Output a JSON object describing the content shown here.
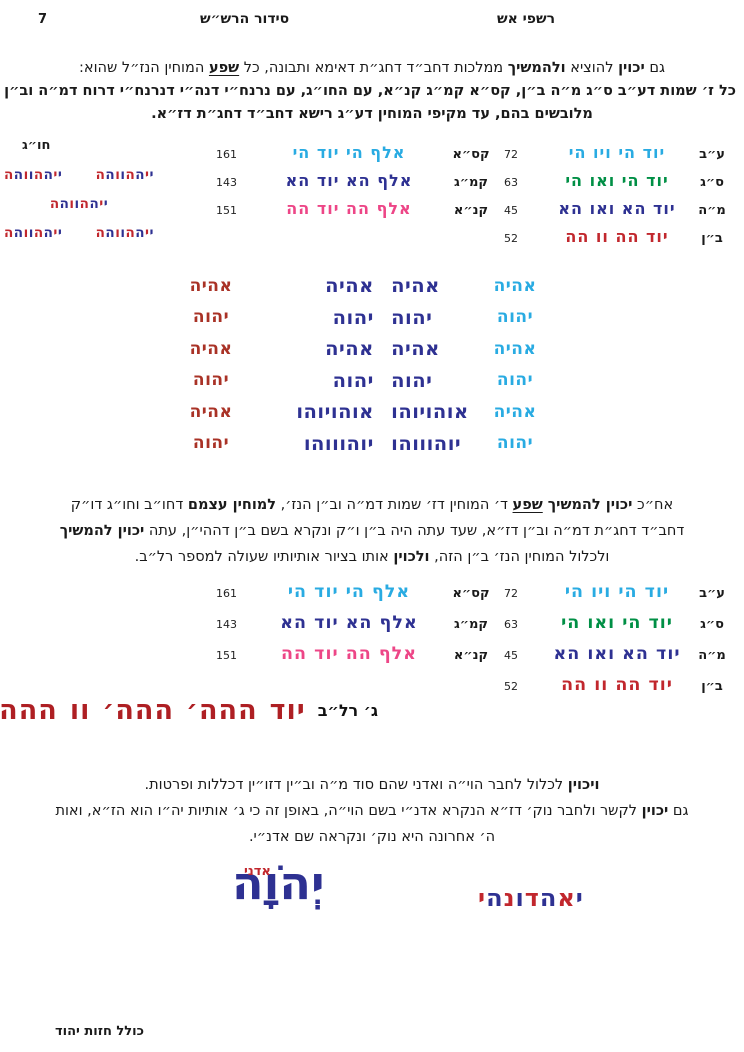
{
  "header": {
    "page_number": "7",
    "center_title": "סידור הרש״ש",
    "right_title": "רשפי אש"
  },
  "colors": {
    "cyan": "#29abe2",
    "green": "#008f45",
    "navy": "#2e3192",
    "red": "#c1272d",
    "pink": "#ed4687",
    "dark_red_names": "#a93226",
    "big_red_line": "#ae1f23"
  },
  "para1": {
    "lines": [
      {
        "segs": [
          {
            "t": "גם "
          },
          {
            "t": "יכוין",
            "b": 1
          },
          {
            "t": " להוציא "
          },
          {
            "t": "ולהמשיך",
            "b": 1
          },
          {
            "t": " ממלכות דחב״ד דחג״ת דאימא ותבונה, כל "
          },
          {
            "t": "שפע",
            "b": 1,
            "u": 1
          },
          {
            "t": " המוחין הנז״ל שהוא:"
          }
        ]
      },
      {
        "segs": [
          {
            "t": "כל ז׳ שמות דע״ב ס״ג מ״ה ב״ן, קס״א קמ״ג קנ״א, עם החו״ג, עם נרנח״י דנה״י דנרנח״י דרוח דמ״ה וב״ן",
            "b": 1
          }
        ]
      },
      {
        "segs": [
          {
            "t": "מלובשים בהם, עד מקיפי המוחין דע״ג רישא דחב״ד דחג״ת דז״א.",
            "b": 1
          }
        ]
      }
    ]
  },
  "milui_table": {
    "rows": [
      {
        "label": "ע״ב",
        "name": "יוד הי ויו הי",
        "color": "cyan",
        "value": "72",
        "label2": "קס״א",
        "name2": "אלף הי יוד הי",
        "color2": "cyan",
        "value2": "161"
      },
      {
        "label": "ס״ג",
        "name": "יוד הי ואו הי",
        "color": "green",
        "value": "63",
        "label2": "קמ״ג",
        "name2": "אלף הא יוד הא",
        "color2": "navy",
        "value2": "143"
      },
      {
        "label": "מ״ה",
        "name": "יוד הא ואו הא",
        "color": "navy",
        "value": "45",
        "label2": "קנ״א",
        "name2": "אלף הה יוד הה",
        "color2": "pink",
        "value2": "151"
      },
      {
        "label": "ב״ן",
        "name": "יוד הה וו הה",
        "color": "red",
        "value": "52",
        "label2": "",
        "name2": "",
        "color2": "",
        "value2": ""
      }
    ]
  },
  "chug": {
    "header": "חו״ג",
    "word": "ייההווהה",
    "row_pattern": [
      2,
      1,
      2
    ],
    "letter_colors": [
      "navy",
      "red"
    ]
  },
  "names_block": {
    "right_col": {
      "color": "cyan",
      "items": [
        "אהיה",
        "יהוה",
        "אהיה",
        "יהוה",
        "אהיה",
        "יהוה"
      ]
    },
    "center_col": {
      "color": "navy",
      "items": [
        "אהיה אהיה",
        "יהוה יהוה",
        "אהיה אהיה",
        "יהוה יהוה",
        "אוהויוהו אוהויוהו",
        "יוהוווהו יוהוווהו"
      ]
    },
    "left_col": {
      "color": "darkred",
      "items": [
        "אהיה",
        "יהוה",
        "אהיה",
        "יהוה",
        "אהיה",
        "יהוה"
      ]
    }
  },
  "para2": {
    "lines": [
      {
        "segs": [
          {
            "t": "אח״כ "
          },
          {
            "t": "יכוין להמשיך ",
            "b": 1
          },
          {
            "t": "שפע",
            "b": 1,
            "u": 1
          },
          {
            "t": " ד׳ המוחין דז׳ שמות דמ״ה וב״ן הנז׳, "
          },
          {
            "t": "למוחין עצמם",
            "b": 1
          },
          {
            "t": " דחו״ב וחו״ג דו״ק"
          }
        ]
      },
      {
        "segs": [
          {
            "t": "דחב״ד דחג״ת דמ״ה וב״ן דז״א, שעד עתה היה ב״ן ו״ק ונקרא בשם ב״ן דההי״ן, עתה "
          },
          {
            "t": "יכוין להמשיך",
            "b": 1
          }
        ]
      },
      {
        "segs": [
          {
            "t": "ולכלול המוחין הנז׳ ב״ן הזה, "
          },
          {
            "t": "ולכוין",
            "b": 1
          },
          {
            "t": " אותו בציור אותיותיו שעולה למספר רל״ב."
          }
        ]
      }
    ]
  },
  "resh_line": {
    "label": "ג׳ רל״ב",
    "words": [
      "יוד",
      "ההה׳",
      "ההה׳",
      "וו",
      "ההה׳",
      "ההה׳"
    ]
  },
  "para3": {
    "lines": [
      {
        "segs": [
          {
            "t": "ויכוין",
            "b": 1
          },
          {
            "t": " לכלול לחבר הוי״ה ואדני שהם סוד מ״ה וב״ין דזו״ין דכללות ופרטות."
          }
        ]
      },
      {
        "segs": [
          {
            "t": "גם "
          },
          {
            "t": "יכוין",
            "b": 1
          },
          {
            "t": " לקשר ולחבר נוק׳ דז״א הנקרא אדנ״י בשם הוי״ה, באופן זה כי ג׳ אותיות יה״ו הוא הז״א, ואות"
          }
        ]
      },
      {
        "segs": [
          {
            "t": "ה׳  אחרונה היא נוק׳ ונקראה שם אדנ״י."
          }
        ]
      }
    ]
  },
  "bottom_names": {
    "interlaced": {
      "letters": [
        {
          "ch": "י",
          "c": "navy"
        },
        {
          "ch": "א",
          "c": "red"
        },
        {
          "ch": "ה",
          "c": "navy"
        },
        {
          "ch": "ד",
          "c": "red"
        },
        {
          "ch": "ו",
          "c": "navy"
        },
        {
          "ch": "נ",
          "c": "red"
        },
        {
          "ch": "ה",
          "c": "navy"
        },
        {
          "ch": "י",
          "c": "red"
        }
      ]
    },
    "big_name": {
      "text": "יְהֹוָה",
      "overlay": "אדני"
    }
  },
  "footer": {
    "text": "כולל חזות יהוד"
  }
}
